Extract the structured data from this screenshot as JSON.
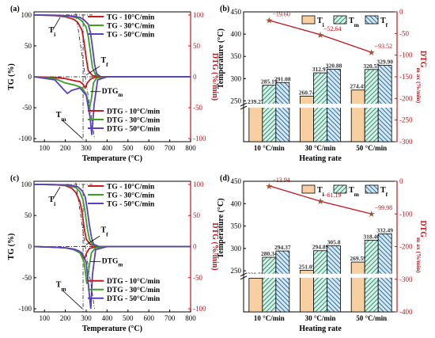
{
  "colors": {
    "red": "#c8191f",
    "green": "#3aa01e",
    "purple": "#5a3fc0",
    "axis": "#000000",
    "right_axis": "#c0141c",
    "bar1": "#f7cfa0",
    "bar2": "#2f8f7a",
    "bar3": "#2a6f99",
    "trend": "#c0141c"
  },
  "chart_data": [
    {
      "id": "a",
      "type": "line",
      "panel_label": "(a)",
      "xlabel": "Temperature (°C)",
      "ylabel": "TG (%)",
      "ylabel_right": "DTG (%/min)",
      "xlim": [
        50,
        800
      ],
      "ylim": [
        -105,
        105
      ],
      "xticks": [
        100,
        200,
        300,
        400,
        500,
        600,
        700,
        800
      ],
      "yticks": [
        -100,
        -50,
        0,
        50,
        100
      ],
      "yticks_right": [
        -100,
        -50,
        0,
        50,
        100
      ],
      "legend_tg": [
        "TG - 10°C/min",
        "TG - 30°C/min",
        "TG - 50°C/min"
      ],
      "legend_dtg": [
        "DTG - 10°C/min",
        "DTG - 30°C/min",
        "DTG - 50°C/min"
      ],
      "annotations": [
        "Ti",
        "Tf",
        "DTGmax",
        "Tm"
      ],
      "series": [
        {
          "name": "TG - 10°C/min",
          "color": "red",
          "x": [
            50,
            150,
            200,
            240,
            260,
            280,
            290,
            300,
            310,
            330,
            360,
            400,
            500,
            800
          ],
          "y": [
            100,
            99,
            97,
            93,
            88,
            75,
            55,
            30,
            10,
            2,
            0,
            0,
            0,
            0
          ]
        },
        {
          "name": "TG - 30°C/min",
          "color": "green",
          "x": [
            50,
            150,
            220,
            260,
            280,
            300,
            310,
            320,
            330,
            345,
            370,
            400,
            500,
            800
          ],
          "y": [
            100,
            99.5,
            98,
            95,
            90,
            80,
            65,
            40,
            15,
            3,
            0,
            0,
            0,
            0
          ]
        },
        {
          "name": "TG - 50°C/min",
          "color": "purple",
          "x": [
            50,
            150,
            230,
            270,
            290,
            310,
            320,
            330,
            340,
            350,
            370,
            400,
            500,
            800
          ],
          "y": [
            100,
            99.5,
            98.5,
            96,
            92,
            85,
            72,
            48,
            20,
            5,
            0,
            0,
            0,
            0
          ]
        },
        {
          "name": "DTG - 10°C/min",
          "color": "red",
          "x": [
            50,
            150,
            200,
            240,
            270,
            285,
            295,
            305,
            320,
            340,
            400,
            800
          ],
          "y": [
            0,
            -1,
            -3,
            -6,
            -8,
            -12,
            -18,
            -10,
            -4,
            -1,
            0,
            0
          ]
        },
        {
          "name": "DTG - 30°C/min",
          "color": "green",
          "x": [
            50,
            150,
            200,
            250,
            280,
            300,
            315,
            325,
            335,
            350,
            400,
            800
          ],
          "y": [
            0,
            -3,
            -10,
            -14,
            -18,
            -28,
            -52,
            -35,
            -10,
            -2,
            0,
            0
          ]
        },
        {
          "name": "DTG - 50°C/min",
          "color": "purple",
          "x": [
            50,
            150,
            190,
            210,
            230,
            270,
            300,
            318,
            327,
            338,
            355,
            400,
            800
          ],
          "y": [
            0,
            -5,
            -20,
            -27,
            -22,
            -18,
            -30,
            -65,
            -94,
            -45,
            -5,
            0,
            0
          ]
        }
      ]
    },
    {
      "id": "b",
      "type": "bar",
      "panel_label": "(b)",
      "xlabel": "Heating rate",
      "ylabel": "Temperature (°C)",
      "ylabel_right": "DTGmax (%/min)",
      "categories": [
        "10 °C/min",
        "30 °C/min",
        "50 °C/min"
      ],
      "ylim": [
        200,
        450
      ],
      "yticks": [
        250,
        300,
        350,
        400,
        450
      ],
      "yticks_right": [
        0,
        -50,
        -100,
        -150,
        -200,
        -250,
        -300
      ],
      "ylim_right": [
        -300,
        0
      ],
      "legend": [
        "Ti",
        "Tm",
        "Tf"
      ],
      "series": [
        {
          "name": "Ti",
          "values": [
            239.27,
            260.74,
            274.45
          ],
          "labels": [
            "239.27",
            "260.74",
            "274.45"
          ]
        },
        {
          "name": "Tm",
          "values": [
            285.19,
            312.97,
            320.55
          ],
          "labels": [
            "285.19",
            "312.97",
            "320.55"
          ]
        },
        {
          "name": "Tf",
          "values": [
            291.08,
            320.88,
            329.9
          ],
          "labels": [
            "291.08",
            "320.88",
            "329.90"
          ]
        }
      ],
      "dtgmax": {
        "values": [
          -19.6,
          -52.64,
          -93.52
        ],
        "labels": [
          "−19.60",
          "−52.64",
          "−93.52"
        ]
      }
    },
    {
      "id": "c",
      "type": "line",
      "panel_label": "(c)",
      "xlabel": "Temperature (°C)",
      "ylabel": "TG (%)",
      "ylabel_right": "DTG (%/min)",
      "xlim": [
        50,
        800
      ],
      "ylim": [
        -105,
        105
      ],
      "xticks": [
        100,
        200,
        300,
        400,
        500,
        600,
        700,
        800
      ],
      "yticks": [
        -100,
        -50,
        0,
        50,
        100
      ],
      "yticks_right": [
        -100,
        -50,
        0,
        50,
        100
      ],
      "legend_tg": [
        "TG - 10°C/min",
        "TG - 30°C/min",
        "TG - 50°C/min"
      ],
      "legend_dtg": [
        "DTG - 10°C/min",
        "DTG - 30°C/min",
        "DTG - 50°C/min"
      ],
      "annotations": [
        "Ti",
        "Tf",
        "DTGmax",
        "Tm"
      ],
      "series": [
        {
          "name": "TG - 10°C/min",
          "color": "red",
          "x": [
            50,
            150,
            200,
            230,
            250,
            270,
            280,
            290,
            300,
            320,
            350,
            400,
            500,
            800
          ],
          "y": [
            100,
            99.5,
            98,
            94,
            87,
            72,
            55,
            30,
            12,
            3,
            0,
            0,
            0,
            0
          ]
        },
        {
          "name": "TG - 30°C/min",
          "color": "green",
          "x": [
            50,
            150,
            210,
            250,
            270,
            285,
            295,
            305,
            315,
            330,
            360,
            400,
            500,
            800
          ],
          "y": [
            100,
            99.5,
            98.5,
            95,
            88,
            75,
            55,
            30,
            12,
            3,
            0,
            0,
            0,
            0
          ]
        },
        {
          "name": "TG - 50°C/min",
          "color": "purple",
          "x": [
            50,
            150,
            220,
            260,
            280,
            295,
            305,
            315,
            325,
            335,
            360,
            400,
            500,
            800
          ],
          "y": [
            100,
            99.5,
            99,
            96,
            90,
            80,
            60,
            35,
            15,
            4,
            0,
            0,
            0,
            0
          ]
        },
        {
          "name": "DTG - 10°C/min",
          "color": "red",
          "x": [
            50,
            150,
            200,
            240,
            265,
            280,
            292,
            302,
            315,
            340,
            400,
            800
          ],
          "y": [
            0,
            -1,
            -2,
            -4,
            -7,
            -12,
            -20,
            -10,
            -3,
            -1,
            0,
            0
          ]
        },
        {
          "name": "DTG - 30°C/min",
          "color": "green",
          "x": [
            50,
            150,
            200,
            240,
            270,
            290,
            303,
            313,
            325,
            345,
            400,
            800
          ],
          "y": [
            0,
            -1,
            -2,
            -5,
            -10,
            -25,
            -60,
            -35,
            -10,
            -2,
            0,
            0
          ]
        },
        {
          "name": "DTG - 50°C/min",
          "color": "purple",
          "x": [
            50,
            150,
            200,
            250,
            280,
            300,
            313,
            322,
            330,
            345,
            400,
            800
          ],
          "y": [
            0,
            -1,
            -2,
            -5,
            -10,
            -25,
            -70,
            -100,
            -45,
            -5,
            0,
            0
          ]
        }
      ]
    },
    {
      "id": "d",
      "type": "bar",
      "panel_label": "(d)",
      "xlabel": "Heating rate",
      "ylabel": "Temperature (°C)",
      "ylabel_right": "DTGmax (%/min)",
      "categories": [
        "10 °C/min",
        "30 °C/min",
        "50 °C/min"
      ],
      "ylim": [
        200,
        450
      ],
      "yticks": [
        250,
        300,
        350,
        400,
        450
      ],
      "yticks_right": [
        0,
        -100,
        -200,
        -300,
        -400
      ],
      "ylim_right": [
        -400,
        0
      ],
      "legend": [
        "Ti",
        "Tm",
        "Tf"
      ],
      "series": [
        {
          "name": "Ti",
          "values": [
            220.57,
            251.05,
            269.59
          ],
          "labels": [
            "220.57",
            "251.05",
            "269.59"
          ]
        },
        {
          "name": "Tm",
          "values": [
            280.34,
            294.89,
            318.46
          ],
          "labels": [
            "280.34",
            "294.89",
            "318.46"
          ]
        },
        {
          "name": "Tf",
          "values": [
            294.37,
            305.8,
            332.49
          ],
          "labels": [
            "294.37",
            "305.8",
            "332.49"
          ]
        }
      ],
      "dtgmax": {
        "values": [
          -13.94,
          -61.19,
          -99.98
        ],
        "labels": [
          "−13.94",
          "−61.19",
          "−99.98"
        ]
      }
    }
  ]
}
